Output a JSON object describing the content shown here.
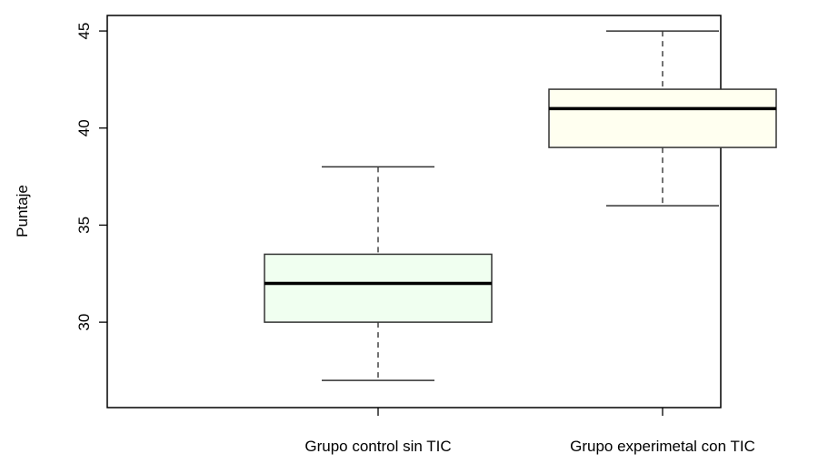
{
  "chart_data": {
    "type": "boxplot",
    "title": "",
    "xlabel": "",
    "ylabel": "Puntaje",
    "ylim": [
      25.6,
      45.8
    ],
    "yticks": [
      30,
      35,
      40,
      45
    ],
    "grid": false,
    "legend": "none",
    "categories": [
      "Grupo control sin TIC",
      "Grupo experimetal con TIC"
    ],
    "boxes": [
      {
        "category": "Grupo control sin TIC",
        "min": 27,
        "q1": 30,
        "median": 32,
        "q3": 33.5,
        "max": 38,
        "fill": "#f0fff0"
      },
      {
        "category": "Grupo experimetal con TIC",
        "min": 36,
        "q1": 39,
        "median": 41,
        "q3": 42,
        "max": 45,
        "fill": "#fffff0"
      }
    ]
  }
}
